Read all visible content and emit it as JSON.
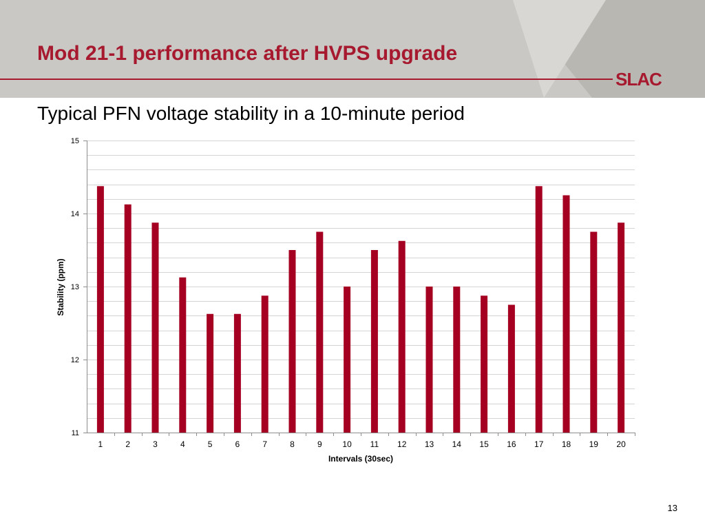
{
  "slide": {
    "title": "Mod 21-1 performance after HVPS upgrade",
    "subtitle": "Typical PFN voltage stability in a 10-minute period",
    "logo_text": "SLAC",
    "page_number": "13"
  },
  "colors": {
    "accent": "#a6192e",
    "bar": "#a50021",
    "header_band": "#c9c8c4",
    "gridline": "#d4d4d4"
  },
  "chart_data": {
    "type": "bar",
    "title": "",
    "xlabel": "Intervals (30sec)",
    "ylabel": "Stability (ppm)",
    "ylim": [
      11,
      15
    ],
    "yticks": [
      "11",
      "12",
      "13",
      "14",
      "15"
    ],
    "categories": [
      "1",
      "2",
      "3",
      "4",
      "5",
      "6",
      "7",
      "8",
      "9",
      "10",
      "11",
      "12",
      "13",
      "14",
      "15",
      "16",
      "17",
      "18",
      "19",
      "20"
    ],
    "values": [
      14.375,
      14.125,
      13.875,
      13.125,
      12.625,
      12.625,
      12.875,
      13.5,
      13.75,
      13.0,
      13.5,
      13.625,
      13.0,
      13.0,
      12.875,
      12.75,
      14.375,
      14.25,
      13.75,
      13.875
    ],
    "grid": true,
    "minor_grid_step": 0.2,
    "legend": "none"
  }
}
